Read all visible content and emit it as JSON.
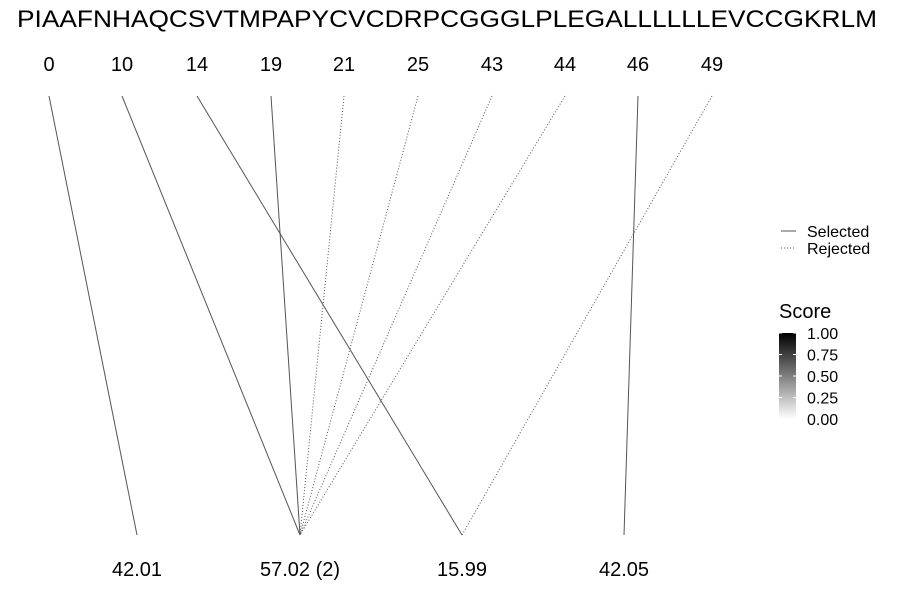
{
  "chart_data": {
    "type": "peptide-fragment-match",
    "sequence": "PIAAFNHAQCSVTMPAPYCVCDRPCGGGLPLEGALLLLLLEVCCGKRLM",
    "positions": [
      0,
      10,
      14,
      19,
      21,
      25,
      43,
      44,
      46,
      49
    ],
    "masses": [
      "42.01",
      "57.02 (2)",
      "15.99",
      "42.05"
    ],
    "links": [
      {
        "from": 0,
        "to": 0,
        "status": "Selected",
        "score": 0.55
      },
      {
        "from": 1,
        "to": 1,
        "status": "Selected",
        "score": 0.55
      },
      {
        "from": 2,
        "to": 2,
        "status": "Selected",
        "score": 0.55
      },
      {
        "from": 3,
        "to": 1,
        "status": "Selected",
        "score": 0.55
      },
      {
        "from": 4,
        "to": 1,
        "status": "Rejected",
        "score": 0.55
      },
      {
        "from": 5,
        "to": 1,
        "status": "Rejected",
        "score": 0.55
      },
      {
        "from": 6,
        "to": 1,
        "status": "Rejected",
        "score": 0.55
      },
      {
        "from": 7,
        "to": 1,
        "status": "Rejected",
        "score": 0.55
      },
      {
        "from": 8,
        "to": 3,
        "status": "Selected",
        "score": 0.55
      },
      {
        "from": 9,
        "to": 2,
        "status": "Rejected",
        "score": 0.55
      }
    ],
    "legend": {
      "linetype": [
        {
          "label": "Selected",
          "style": "solid"
        },
        {
          "label": "Rejected",
          "style": "dotted"
        }
      ],
      "score_title": "Score",
      "score_ticks": [
        "1.00",
        "0.75",
        "0.50",
        "0.25",
        "0.00"
      ],
      "score_range": [
        0,
        1
      ]
    },
    "colors": {
      "line": "#555555",
      "text": "#000000",
      "scale_high": "#000000",
      "scale_low": "#ffffff"
    }
  }
}
